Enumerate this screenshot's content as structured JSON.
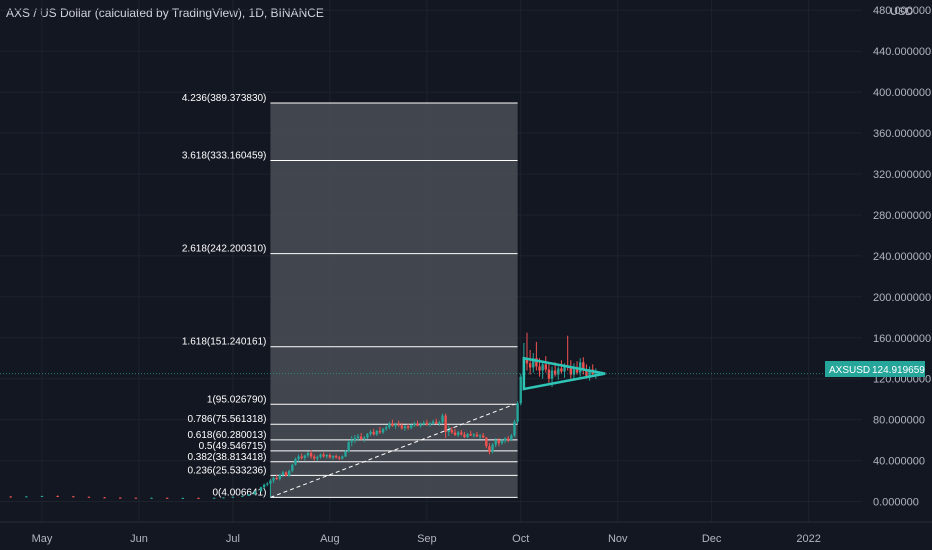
{
  "header": {
    "title": "AXS / US Dollar (calculated by TradingView), 1D, BINANCE",
    "currency": "USD"
  },
  "colors": {
    "background": "#131722",
    "grid": "#1e222d",
    "axis_text": "#b2b5be",
    "up": "#26a69a",
    "down": "#ef5350",
    "triangle": "#2ec4b6",
    "price_tag": "#26a69a",
    "fib_zone": "#4a4d55",
    "fib_line": "#ffffff"
  },
  "price_tag": {
    "symbol": "AXSUSD",
    "value": "124.919659"
  },
  "chart_data": {
    "type": "candlestick",
    "ylim": [
      -20,
      490
    ],
    "y_ticks": [
      "0.000000",
      "40.000000",
      "80.000000",
      "120.000000",
      "160.000000",
      "200.000000",
      "240.000000",
      "280.000000",
      "320.000000",
      "360.000000",
      "400.000000",
      "440.000000",
      "480.000000"
    ],
    "x_ticks": [
      "May",
      "Jun",
      "Jul",
      "Aug",
      "Sep",
      "Oct",
      "Nov",
      "Dec",
      "2022"
    ],
    "grid": true,
    "fibonacci": {
      "start_date": "2021-07-13",
      "end_date": "2021-09-30",
      "levels": [
        {
          "label": "0(4.006641)",
          "value": 4.006641
        },
        {
          "label": "0.236(25.533236)",
          "value": 25.533236
        },
        {
          "label": "0.382(38.813418)",
          "value": 38.813418
        },
        {
          "label": "0.5(49.546715)",
          "value": 49.546715
        },
        {
          "label": "0.618(60.280013)",
          "value": 60.280013
        },
        {
          "label": "0.786(75.561318)",
          "value": 75.561318
        },
        {
          "label": "1(95.026790)",
          "value": 95.02679
        },
        {
          "label": "1.618(151.240161)",
          "value": 151.240161
        },
        {
          "label": "2.618(242.200310)",
          "value": 242.20031
        },
        {
          "label": "3.618(333.160459)",
          "value": 333.160459
        },
        {
          "label": "4.236(389.373830)",
          "value": 389.37383
        }
      ]
    },
    "trendline": {
      "from": [
        "2021-07-13",
        4.0
      ],
      "to": [
        "2021-09-29",
        95.0
      ]
    },
    "triangle": {
      "apex": [
        "2021-10-28",
        125
      ],
      "upper_start": [
        "2021-10-02",
        140
      ],
      "lower_start": [
        "2021-10-02",
        110
      ]
    },
    "candles": [
      [
        "2021-04-01",
        5.3,
        5.8,
        5.0,
        5.5
      ],
      [
        "2021-04-06",
        5.5,
        6.0,
        5.1,
        5.2
      ],
      [
        "2021-04-11",
        5.2,
        5.6,
        4.8,
        5.3
      ],
      [
        "2021-04-16",
        5.3,
        5.7,
        4.9,
        4.9
      ],
      [
        "2021-04-21",
        4.9,
        5.4,
        4.5,
        4.8
      ],
      [
        "2021-04-26",
        4.8,
        5.3,
        4.4,
        5.0
      ],
      [
        "2021-05-01",
        5.0,
        5.6,
        4.7,
        5.4
      ],
      [
        "2021-05-06",
        5.4,
        6.0,
        5.0,
        5.1
      ],
      [
        "2021-05-11",
        5.1,
        5.5,
        4.5,
        4.6
      ],
      [
        "2021-05-16",
        4.6,
        4.9,
        3.9,
        4.1
      ],
      [
        "2021-05-21",
        4.1,
        4.4,
        3.5,
        3.8
      ],
      [
        "2021-05-26",
        3.8,
        4.2,
        3.4,
        3.7
      ],
      [
        "2021-05-31",
        3.7,
        4.0,
        3.3,
        3.5
      ],
      [
        "2021-06-05",
        3.5,
        3.9,
        3.2,
        3.6
      ],
      [
        "2021-06-10",
        3.6,
        3.9,
        3.2,
        3.4
      ],
      [
        "2021-06-15",
        3.4,
        3.8,
        3.1,
        3.5
      ],
      [
        "2021-06-20",
        3.5,
        3.9,
        3.1,
        3.3
      ],
      [
        "2021-06-25",
        3.3,
        3.7,
        3.0,
        3.6
      ],
      [
        "2021-06-28",
        3.6,
        4.2,
        3.4,
        4.0
      ],
      [
        "2021-07-01",
        4.0,
        4.8,
        3.8,
        4.6
      ],
      [
        "2021-07-04",
        4.6,
        5.8,
        4.4,
        5.5
      ],
      [
        "2021-07-06",
        5.5,
        7.2,
        5.3,
        7.0
      ],
      [
        "2021-07-08",
        7.0,
        10.5,
        6.8,
        10.0
      ],
      [
        "2021-07-10",
        10.0,
        14.5,
        9.6,
        14.0
      ],
      [
        "2021-07-11",
        14.0,
        17.5,
        13.0,
        16.5
      ],
      [
        "2021-07-12",
        16.5,
        19.0,
        15.0,
        17.5
      ],
      [
        "2021-07-13",
        17.5,
        22.0,
        4.0,
        20.5
      ],
      [
        "2021-07-14",
        20.5,
        24.5,
        18.0,
        23.0
      ],
      [
        "2021-07-15",
        23.0,
        26.0,
        21.0,
        22.0
      ],
      [
        "2021-07-16",
        22.0,
        27.0,
        20.5,
        26.0
      ],
      [
        "2021-07-17",
        26.0,
        30.0,
        24.0,
        28.5
      ],
      [
        "2021-07-18",
        28.5,
        29.5,
        24.5,
        25.0
      ],
      [
        "2021-07-19",
        25.0,
        31.0,
        24.0,
        30.0
      ],
      [
        "2021-07-20",
        30.0,
        37.0,
        28.5,
        36.0
      ],
      [
        "2021-07-21",
        36.0,
        43.0,
        35.0,
        41.5
      ],
      [
        "2021-07-22",
        41.5,
        46.0,
        39.0,
        44.0
      ],
      [
        "2021-07-23",
        44.0,
        47.0,
        41.0,
        42.5
      ],
      [
        "2021-07-24",
        42.5,
        46.0,
        40.0,
        45.0
      ],
      [
        "2021-07-25",
        45.0,
        49.0,
        43.0,
        47.5
      ],
      [
        "2021-07-26",
        47.5,
        50.0,
        42.0,
        44.0
      ],
      [
        "2021-07-27",
        44.0,
        46.0,
        40.0,
        42.0
      ],
      [
        "2021-07-28",
        42.0,
        45.0,
        39.5,
        43.5
      ],
      [
        "2021-07-29",
        43.5,
        47.0,
        42.0,
        46.0
      ],
      [
        "2021-07-30",
        46.0,
        48.0,
        43.0,
        44.0
      ],
      [
        "2021-07-31",
        44.0,
        46.5,
        42.0,
        45.5
      ],
      [
        "2021-08-01",
        45.5,
        47.0,
        42.0,
        43.0
      ],
      [
        "2021-08-02",
        43.0,
        45.5,
        41.0,
        44.5
      ],
      [
        "2021-08-03",
        44.5,
        46.0,
        42.0,
        43.0
      ],
      [
        "2021-08-04",
        43.0,
        44.5,
        40.5,
        42.0
      ],
      [
        "2021-08-05",
        42.0,
        45.0,
        41.0,
        44.0
      ],
      [
        "2021-08-06",
        44.0,
        50.0,
        43.5,
        49.0
      ],
      [
        "2021-08-07",
        49.0,
        60.0,
        48.0,
        58.0
      ],
      [
        "2021-08-08",
        58.0,
        64.0,
        54.0,
        60.0
      ],
      [
        "2021-08-09",
        60.0,
        65.0,
        57.0,
        62.0
      ],
      [
        "2021-08-10",
        62.0,
        66.0,
        59.0,
        63.5
      ],
      [
        "2021-08-11",
        63.5,
        67.0,
        60.0,
        61.0
      ],
      [
        "2021-08-12",
        61.0,
        64.0,
        58.0,
        62.5
      ],
      [
        "2021-08-13",
        62.5,
        67.0,
        61.0,
        66.0
      ],
      [
        "2021-08-14",
        66.0,
        70.0,
        64.0,
        68.0
      ],
      [
        "2021-08-15",
        68.0,
        71.0,
        64.5,
        65.5
      ],
      [
        "2021-08-16",
        65.5,
        70.0,
        64.0,
        69.0
      ],
      [
        "2021-08-17",
        69.0,
        73.0,
        66.0,
        67.5
      ],
      [
        "2021-08-18",
        67.5,
        72.0,
        66.0,
        71.0
      ],
      [
        "2021-08-19",
        71.0,
        75.0,
        69.0,
        72.5
      ],
      [
        "2021-08-20",
        72.5,
        78.0,
        70.5,
        76.0
      ],
      [
        "2021-08-21",
        76.0,
        80.0,
        73.0,
        74.0
      ],
      [
        "2021-08-22",
        74.0,
        77.0,
        71.0,
        75.5
      ],
      [
        "2021-08-23",
        75.5,
        79.0,
        73.0,
        74.5
      ],
      [
        "2021-08-24",
        74.5,
        77.0,
        70.0,
        71.5
      ],
      [
        "2021-08-25",
        71.5,
        75.0,
        69.0,
        73.5
      ],
      [
        "2021-08-26",
        73.5,
        76.0,
        70.0,
        72.0
      ],
      [
        "2021-08-27",
        72.0,
        75.5,
        70.5,
        74.5
      ],
      [
        "2021-08-28",
        74.5,
        78.0,
        73.0,
        76.0
      ],
      [
        "2021-08-29",
        76.0,
        79.0,
        73.5,
        74.0
      ],
      [
        "2021-08-30",
        74.0,
        77.0,
        72.0,
        75.5
      ],
      [
        "2021-08-31",
        75.5,
        79.0,
        74.0,
        77.0
      ],
      [
        "2021-09-01",
        77.0,
        80.0,
        74.0,
        75.0
      ],
      [
        "2021-09-02",
        75.0,
        78.0,
        73.0,
        76.5
      ],
      [
        "2021-09-03",
        76.5,
        80.0,
        75.0,
        78.0
      ],
      [
        "2021-09-04",
        78.0,
        81.0,
        75.5,
        76.0
      ],
      [
        "2021-09-05",
        76.0,
        79.0,
        74.0,
        77.5
      ],
      [
        "2021-09-06",
        77.5,
        86.0,
        76.0,
        84.0
      ],
      [
        "2021-09-07",
        84.0,
        86.0,
        62.0,
        68.0
      ],
      [
        "2021-09-08",
        68.0,
        74.0,
        64.0,
        70.0
      ],
      [
        "2021-09-09",
        70.0,
        73.0,
        66.0,
        67.5
      ],
      [
        "2021-09-10",
        67.5,
        71.0,
        64.0,
        65.0
      ],
      [
        "2021-09-11",
        65.0,
        69.0,
        63.0,
        67.5
      ],
      [
        "2021-09-12",
        67.5,
        70.0,
        64.5,
        65.5
      ],
      [
        "2021-09-13",
        65.5,
        68.0,
        62.0,
        63.0
      ],
      [
        "2021-09-14",
        63.0,
        67.0,
        62.0,
        66.0
      ],
      [
        "2021-09-15",
        66.0,
        69.0,
        64.0,
        64.5
      ],
      [
        "2021-09-16",
        64.5,
        67.0,
        62.5,
        65.5
      ],
      [
        "2021-09-17",
        65.5,
        68.0,
        63.0,
        63.5
      ],
      [
        "2021-09-18",
        63.5,
        66.0,
        61.0,
        64.5
      ],
      [
        "2021-09-19",
        64.5,
        67.0,
        62.0,
        62.5
      ],
      [
        "2021-09-20",
        62.5,
        63.0,
        52.0,
        54.0
      ],
      [
        "2021-09-21",
        54.0,
        57.0,
        46.0,
        48.5
      ],
      [
        "2021-09-22",
        48.5,
        57.0,
        47.0,
        55.5
      ],
      [
        "2021-09-23",
        55.5,
        62.0,
        53.0,
        60.0
      ],
      [
        "2021-09-24",
        60.0,
        62.0,
        54.0,
        57.0
      ],
      [
        "2021-09-25",
        57.0,
        61.0,
        55.5,
        59.5
      ],
      [
        "2021-09-26",
        59.5,
        63.0,
        57.0,
        61.5
      ],
      [
        "2021-09-27",
        61.5,
        64.0,
        58.0,
        60.0
      ],
      [
        "2021-09-28",
        60.0,
        66.0,
        59.0,
        64.5
      ],
      [
        "2021-09-29",
        64.5,
        80.0,
        63.0,
        78.0
      ],
      [
        "2021-09-30",
        78.0,
        98.0,
        76.0,
        96.0
      ],
      [
        "2021-10-01",
        96.0,
        125.0,
        94.0,
        122.0
      ],
      [
        "2021-10-02",
        122.0,
        155.0,
        118.0,
        140.0
      ],
      [
        "2021-10-03",
        140.0,
        165.0,
        128.0,
        135.0
      ],
      [
        "2021-10-04",
        135.0,
        148.0,
        124.0,
        131.0
      ],
      [
        "2021-10-05",
        131.0,
        145.0,
        126.0,
        140.0
      ],
      [
        "2021-10-06",
        140.0,
        156.0,
        128.0,
        132.0
      ],
      [
        "2021-10-07",
        132.0,
        140.0,
        122.0,
        128.0
      ],
      [
        "2021-10-08",
        128.0,
        138.0,
        120.0,
        134.0
      ],
      [
        "2021-10-09",
        134.0,
        142.0,
        126.0,
        129.0
      ],
      [
        "2021-10-10",
        129.0,
        136.0,
        116.0,
        120.0
      ],
      [
        "2021-10-11",
        120.0,
        132.0,
        112.0,
        128.0
      ],
      [
        "2021-10-12",
        128.0,
        136.0,
        122.0,
        124.0
      ],
      [
        "2021-10-13",
        124.0,
        132.0,
        119.0,
        130.0
      ],
      [
        "2021-10-14",
        130.0,
        138.0,
        125.0,
        127.0
      ],
      [
        "2021-10-15",
        127.0,
        135.0,
        121.0,
        133.0
      ],
      [
        "2021-10-16",
        133.0,
        162.0,
        128.0,
        131.0
      ],
      [
        "2021-10-17",
        131.0,
        138.0,
        120.0,
        124.0
      ],
      [
        "2021-10-18",
        124.0,
        135.0,
        118.0,
        130.0
      ],
      [
        "2021-10-19",
        130.0,
        137.0,
        124.0,
        126.0
      ],
      [
        "2021-10-20",
        126.0,
        140.0,
        122.0,
        136.0
      ],
      [
        "2021-10-21",
        136.0,
        141.0,
        124.0,
        128.0
      ],
      [
        "2021-10-22",
        128.0,
        134.0,
        120.0,
        122.0
      ],
      [
        "2021-10-23",
        122.0,
        132.0,
        118.0,
        129.0
      ],
      [
        "2021-10-24",
        129.0,
        134.0,
        122.0,
        124.5
      ],
      [
        "2021-10-25",
        124.5,
        130.0,
        120.0,
        125.0
      ]
    ]
  }
}
